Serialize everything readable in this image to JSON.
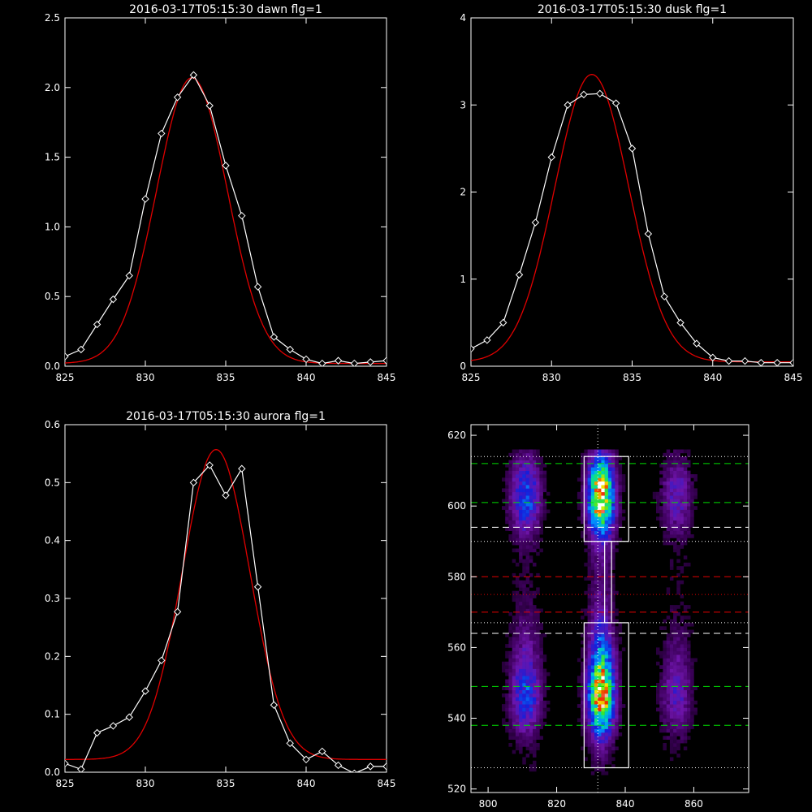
{
  "colors": {
    "background": "#000000",
    "axes": "#ffffff",
    "observed": "#ffffff",
    "fit": "#e00000"
  },
  "chart_data": [
    {
      "type": "line",
      "title": "2016-03-17T05:15:30 dawn flg=1",
      "xlim": [
        825,
        845
      ],
      "ylim": [
        0,
        2.5
      ],
      "xticks": [
        "825",
        "830",
        "835",
        "840",
        "845"
      ],
      "yticks": [
        "0.0",
        "0.5",
        "1.0",
        "1.5",
        "2.0",
        "2.5"
      ],
      "series": [
        {
          "role": "observed",
          "marker": "diamond",
          "x": [
            825,
            826,
            827,
            828,
            829,
            830,
            831,
            832,
            833,
            834,
            835,
            836,
            837,
            838,
            839,
            840,
            841,
            842,
            843,
            844,
            845
          ],
          "y": [
            0.07,
            0.12,
            0.3,
            0.48,
            0.65,
            1.2,
            1.67,
            1.93,
            2.09,
            1.87,
            1.44,
            1.08,
            0.57,
            0.21,
            0.12,
            0.05,
            0.02,
            0.04,
            0.02,
            0.03,
            0.04
          ]
        },
        {
          "role": "fit",
          "type": "gaussian",
          "amplitude": 2.05,
          "center": 832.9,
          "sigma": 2.2,
          "offset": 0.02
        }
      ]
    },
    {
      "type": "line",
      "title": "2016-03-17T05:15:30 dusk flg=1",
      "xlim": [
        825,
        845
      ],
      "ylim": [
        0,
        4
      ],
      "xticks": [
        "825",
        "830",
        "835",
        "840",
        "845"
      ],
      "yticks": [
        "0",
        "1",
        "2",
        "3",
        "4"
      ],
      "series": [
        {
          "role": "observed",
          "marker": "diamond",
          "x": [
            825,
            826,
            827,
            828,
            829,
            830,
            831,
            832,
            833,
            834,
            835,
            836,
            837,
            838,
            839,
            840,
            841,
            842,
            843,
            844,
            845
          ],
          "y": [
            0.2,
            0.3,
            0.5,
            1.05,
            1.65,
            2.4,
            3.0,
            3.12,
            3.13,
            3.02,
            2.5,
            1.52,
            0.8,
            0.5,
            0.26,
            0.1,
            0.06,
            0.06,
            0.04,
            0.04,
            0.04
          ]
        },
        {
          "role": "fit",
          "type": "gaussian",
          "amplitude": 3.3,
          "center": 832.5,
          "sigma": 2.3,
          "offset": 0.05
        }
      ]
    },
    {
      "type": "line",
      "title": "2016-03-17T05:15:30 aurora flg=1",
      "xlim": [
        825,
        845
      ],
      "ylim": [
        0,
        0.6
      ],
      "xticks": [
        "825",
        "830",
        "835",
        "840",
        "845"
      ],
      "yticks": [
        "0.0",
        "0.1",
        "0.2",
        "0.3",
        "0.4",
        "0.5",
        "0.6"
      ],
      "series": [
        {
          "role": "observed",
          "marker": "diamond",
          "x": [
            825,
            826,
            827,
            828,
            829,
            830,
            831,
            832,
            833,
            834,
            835,
            836,
            837,
            838,
            839,
            840,
            841,
            842,
            843,
            844,
            845
          ],
          "y": [
            0.015,
            0.005,
            0.068,
            0.08,
            0.095,
            0.14,
            0.193,
            0.277,
            0.5,
            0.53,
            0.478,
            0.524,
            0.32,
            0.116,
            0.05,
            0.022,
            0.036,
            0.012,
            -0.002,
            0.01,
            0.01
          ]
        },
        {
          "role": "fit",
          "type": "gaussian",
          "amplitude": 0.535,
          "center": 834.4,
          "sigma": 2.1,
          "offset": 0.022
        }
      ]
    },
    {
      "type": "heatmap",
      "xlim": [
        795,
        876
      ],
      "ylim": [
        519,
        623
      ],
      "xticks": [
        "800",
        "820",
        "840",
        "860"
      ],
      "yticks": [
        "520",
        "540",
        "560",
        "580",
        "600",
        "620"
      ],
      "bands": [
        {
          "x_center": 811,
          "x_sigma": 3.0,
          "strength": 0.4
        },
        {
          "x_center": 833,
          "x_sigma": 2.6,
          "strength": 1.0
        },
        {
          "x_center": 855,
          "x_sigma": 3.0,
          "strength": 0.25
        }
      ],
      "hotspots": [
        {
          "y_center": 603,
          "y_sigma": 7,
          "weight": 1.0
        },
        {
          "y_center": 545,
          "y_sigma": 7,
          "weight": 0.75
        },
        {
          "y_center": 556,
          "y_sigma": 9,
          "weight": 0.35
        },
        {
          "y_center": 580,
          "y_sigma": 40,
          "weight": 0.12
        }
      ],
      "vertical_line_x": 832,
      "boxes": [
        {
          "x": [
            828,
            841
          ],
          "y": [
            526,
            567
          ]
        },
        {
          "x": [
            828,
            841
          ],
          "y": [
            590,
            614
          ]
        },
        {
          "x": [
            834,
            836
          ],
          "y": [
            567,
            590
          ]
        }
      ],
      "lines": [
        {
          "y": 612,
          "color": "#00e000",
          "dash": "dashed"
        },
        {
          "y": 601,
          "color": "#00e000",
          "dash": "dashed"
        },
        {
          "y": 549,
          "color": "#00e000",
          "dash": "dashed"
        },
        {
          "y": 538,
          "color": "#00e000",
          "dash": "dashed"
        },
        {
          "y": 594,
          "color": "#ffffff",
          "dash": "dashed"
        },
        {
          "y": 564,
          "color": "#ffffff",
          "dash": "dashed"
        },
        {
          "y": 580,
          "color": "#e00000",
          "dash": "dashed"
        },
        {
          "y": 570,
          "color": "#e00000",
          "dash": "dashed"
        },
        {
          "y": 575,
          "color": "#e00000",
          "dash": "dotted"
        },
        {
          "y": 614,
          "color": "#ffffff",
          "dash": "dotted"
        },
        {
          "y": 590,
          "color": "#ffffff",
          "dash": "dotted"
        },
        {
          "y": 567,
          "color": "#ffffff",
          "dash": "dotted"
        },
        {
          "y": 526,
          "color": "#ffffff",
          "dash": "dotted"
        }
      ]
    }
  ]
}
